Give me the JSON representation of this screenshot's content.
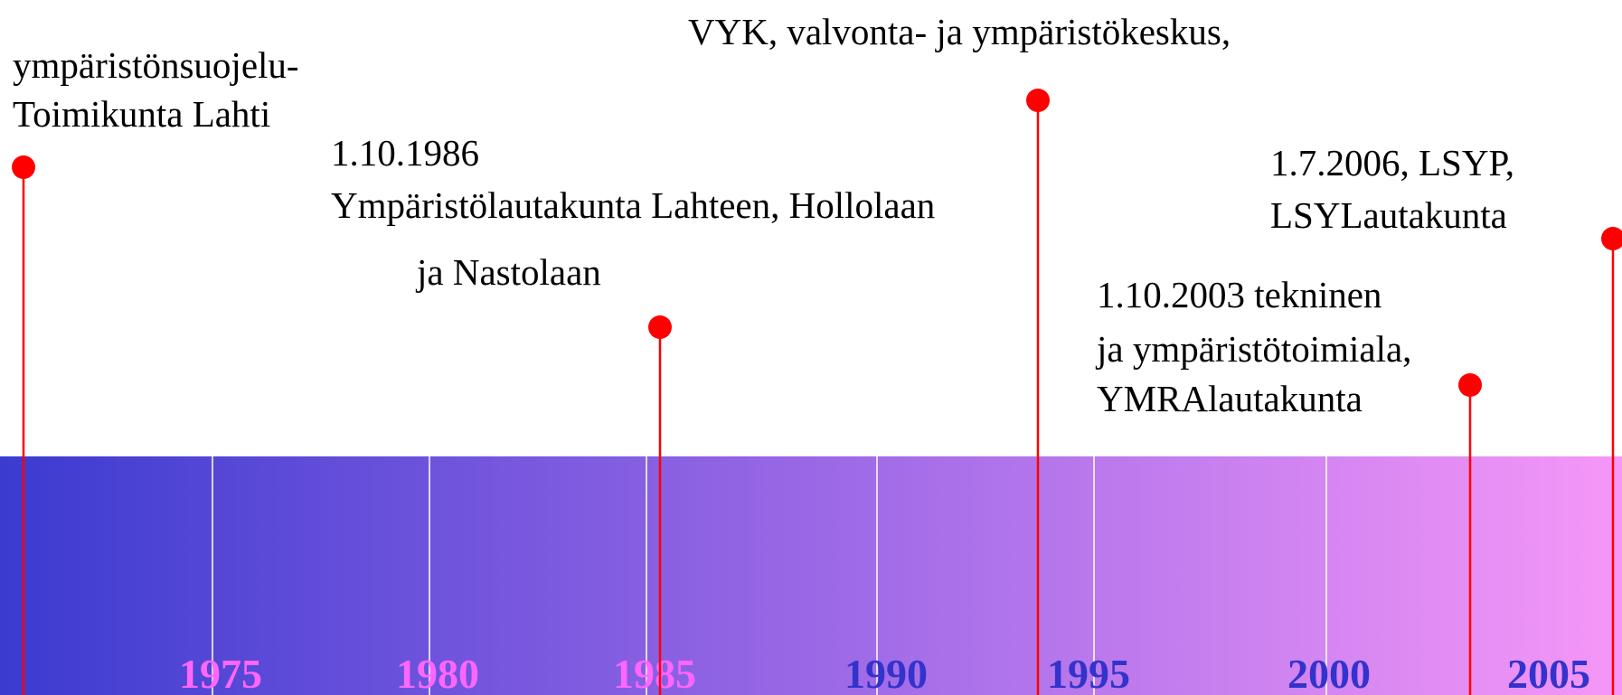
{
  "events": [
    {
      "lines": [
        "ympäristönsuojelu-",
        "Toimikunta Lahti"
      ]
    },
    {
      "lines": [
        "1.10.1986",
        "Ympäristölautakunta Lahteen, Hollolaan",
        "ja Nastolaan"
      ]
    },
    {
      "lines": [
        "VYK, valvonta- ja ympäristökeskus,"
      ]
    },
    {
      "lines": [
        "1.10.2003 tekninen",
        "ja ympäristötoimiala,",
        "YMRAlautakunta"
      ]
    },
    {
      "lines": [
        "1.7.2006, LSYP,",
        "LSYLautakunta"
      ]
    }
  ],
  "years": [
    "1975",
    "1980",
    "1985",
    "1990",
    "1995",
    "2000",
    "2005"
  ]
}
